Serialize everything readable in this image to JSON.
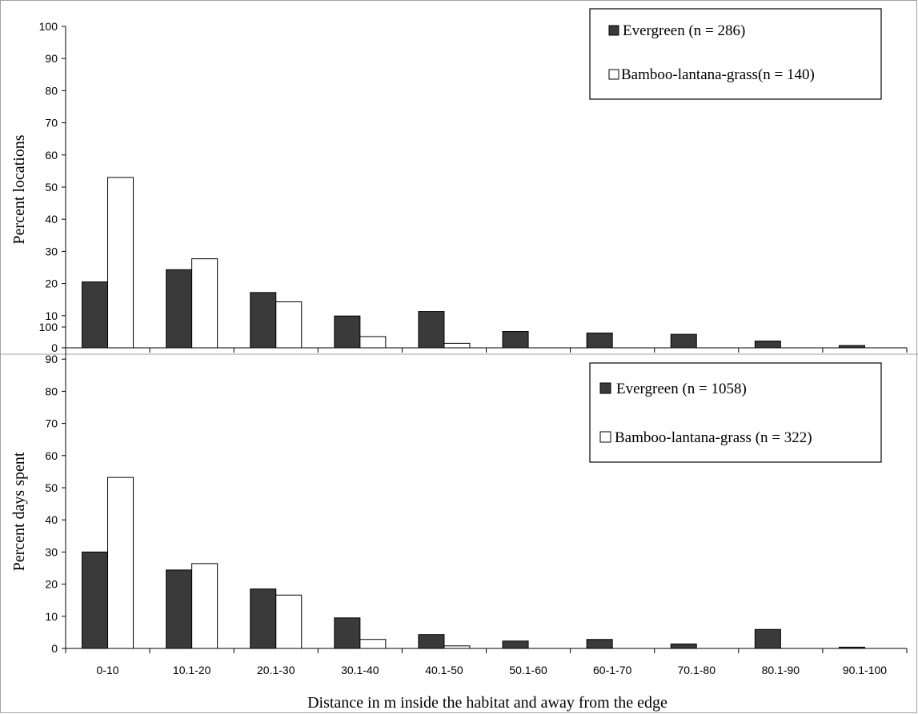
{
  "colors": {
    "evergreen": "#3a3a3a",
    "bamboo": "#ffffff",
    "outline": "#000000",
    "frame": "#a0a0a0"
  },
  "chart_data": [
    {
      "type": "bar",
      "title": "",
      "ylabel": "Percent locations",
      "xlabel": "",
      "ylim": [
        0,
        100
      ],
      "yticks": [
        0,
        10,
        20,
        30,
        40,
        50,
        60,
        70,
        80,
        90,
        100
      ],
      "categories": [
        "0-10",
        "10.1-20",
        "20.1-30",
        "30.1-40",
        "40.1-50",
        "50.1-60",
        "60-1-70",
        "70.1-80",
        "80.1-90",
        "90.1-100"
      ],
      "show_category_labels": false,
      "legend_position": "top-right",
      "grid": false,
      "series": [
        {
          "name": "Evergreen (n = 286)",
          "color_key": "evergreen",
          "values": [
            20.5,
            24.3,
            17.2,
            9.9,
            11.3,
            5.1,
            4.6,
            4.2,
            2.1,
            0.7
          ]
        },
        {
          "name": "Bamboo-lantana-grass(n = 140)",
          "color_key": "bamboo",
          "values": [
            53,
            27.7,
            14.3,
            3.5,
            1.4,
            0,
            0,
            0,
            0,
            0
          ]
        }
      ]
    },
    {
      "type": "bar",
      "title": "",
      "ylabel": "Percent days spent",
      "xlabel": "Distance in m inside the habitat and away from the edge",
      "ylim": [
        0,
        100
      ],
      "yticks": [
        0,
        10,
        20,
        30,
        40,
        50,
        60,
        70,
        80,
        90,
        100
      ],
      "categories": [
        "0-10",
        "10.1-20",
        "20.1-30",
        "30.1-40",
        "40.1-50",
        "50.1-60",
        "60-1-70",
        "70.1-80",
        "80.1-90",
        "90.1-100"
      ],
      "show_category_labels": true,
      "legend_position": "top-right",
      "grid": false,
      "series": [
        {
          "name": "Evergreen (n = 1058)",
          "color_key": "evergreen",
          "values": [
            30,
            24.4,
            18.5,
            9.5,
            4.3,
            2.3,
            2.8,
            1.4,
            5.9,
            0.4
          ]
        },
        {
          "name": "Bamboo-lantana-grass (n = 322)",
          "color_key": "bamboo",
          "values": [
            53.2,
            26.4,
            16.6,
            2.8,
            0.8,
            0,
            0,
            0,
            0,
            0
          ]
        }
      ]
    }
  ]
}
